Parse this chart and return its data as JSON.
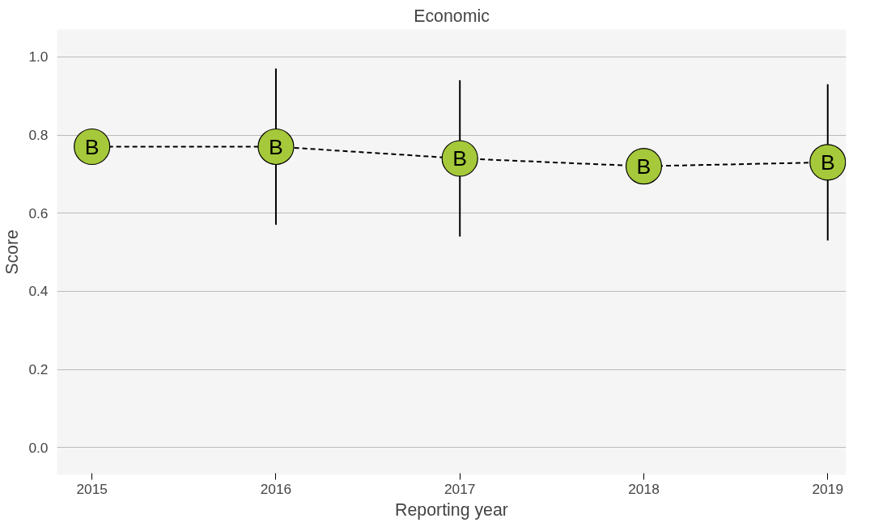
{
  "chart_data": {
    "type": "line",
    "title": "Economic",
    "xlabel": "Reporting year",
    "ylabel": "Score",
    "x": [
      2015,
      2016,
      2017,
      2018,
      2019
    ],
    "series": [
      {
        "color": "#a5c93a",
        "values": [
          0.77,
          0.77,
          0.74,
          0.72,
          0.73
        ],
        "errors": [
          null,
          [
            0.57,
            0.97
          ],
          [
            0.54,
            0.94
          ],
          null,
          [
            0.53,
            0.93
          ]
        ],
        "value_labels": [
          "B",
          "B",
          "B",
          "B",
          "B"
        ]
      }
    ],
    "xlim": [
      2014.81,
      2019.1
    ],
    "ylim": [
      -0.07,
      1.07
    ],
    "xticks": [
      2015,
      2016,
      2017,
      2018,
      2019
    ],
    "yticks": [
      {
        "value": 0,
        "label": "0.0"
      },
      {
        "value": 0.2,
        "label": "0.2"
      },
      {
        "value": 0.4,
        "label": "0.4"
      },
      {
        "value": 0.6,
        "label": "0.6"
      },
      {
        "value": 0.8,
        "label": "0.8"
      },
      {
        "value": 1,
        "label": "1.0"
      }
    ],
    "grid": "y",
    "marker": "circle",
    "line_style": "dashed"
  }
}
